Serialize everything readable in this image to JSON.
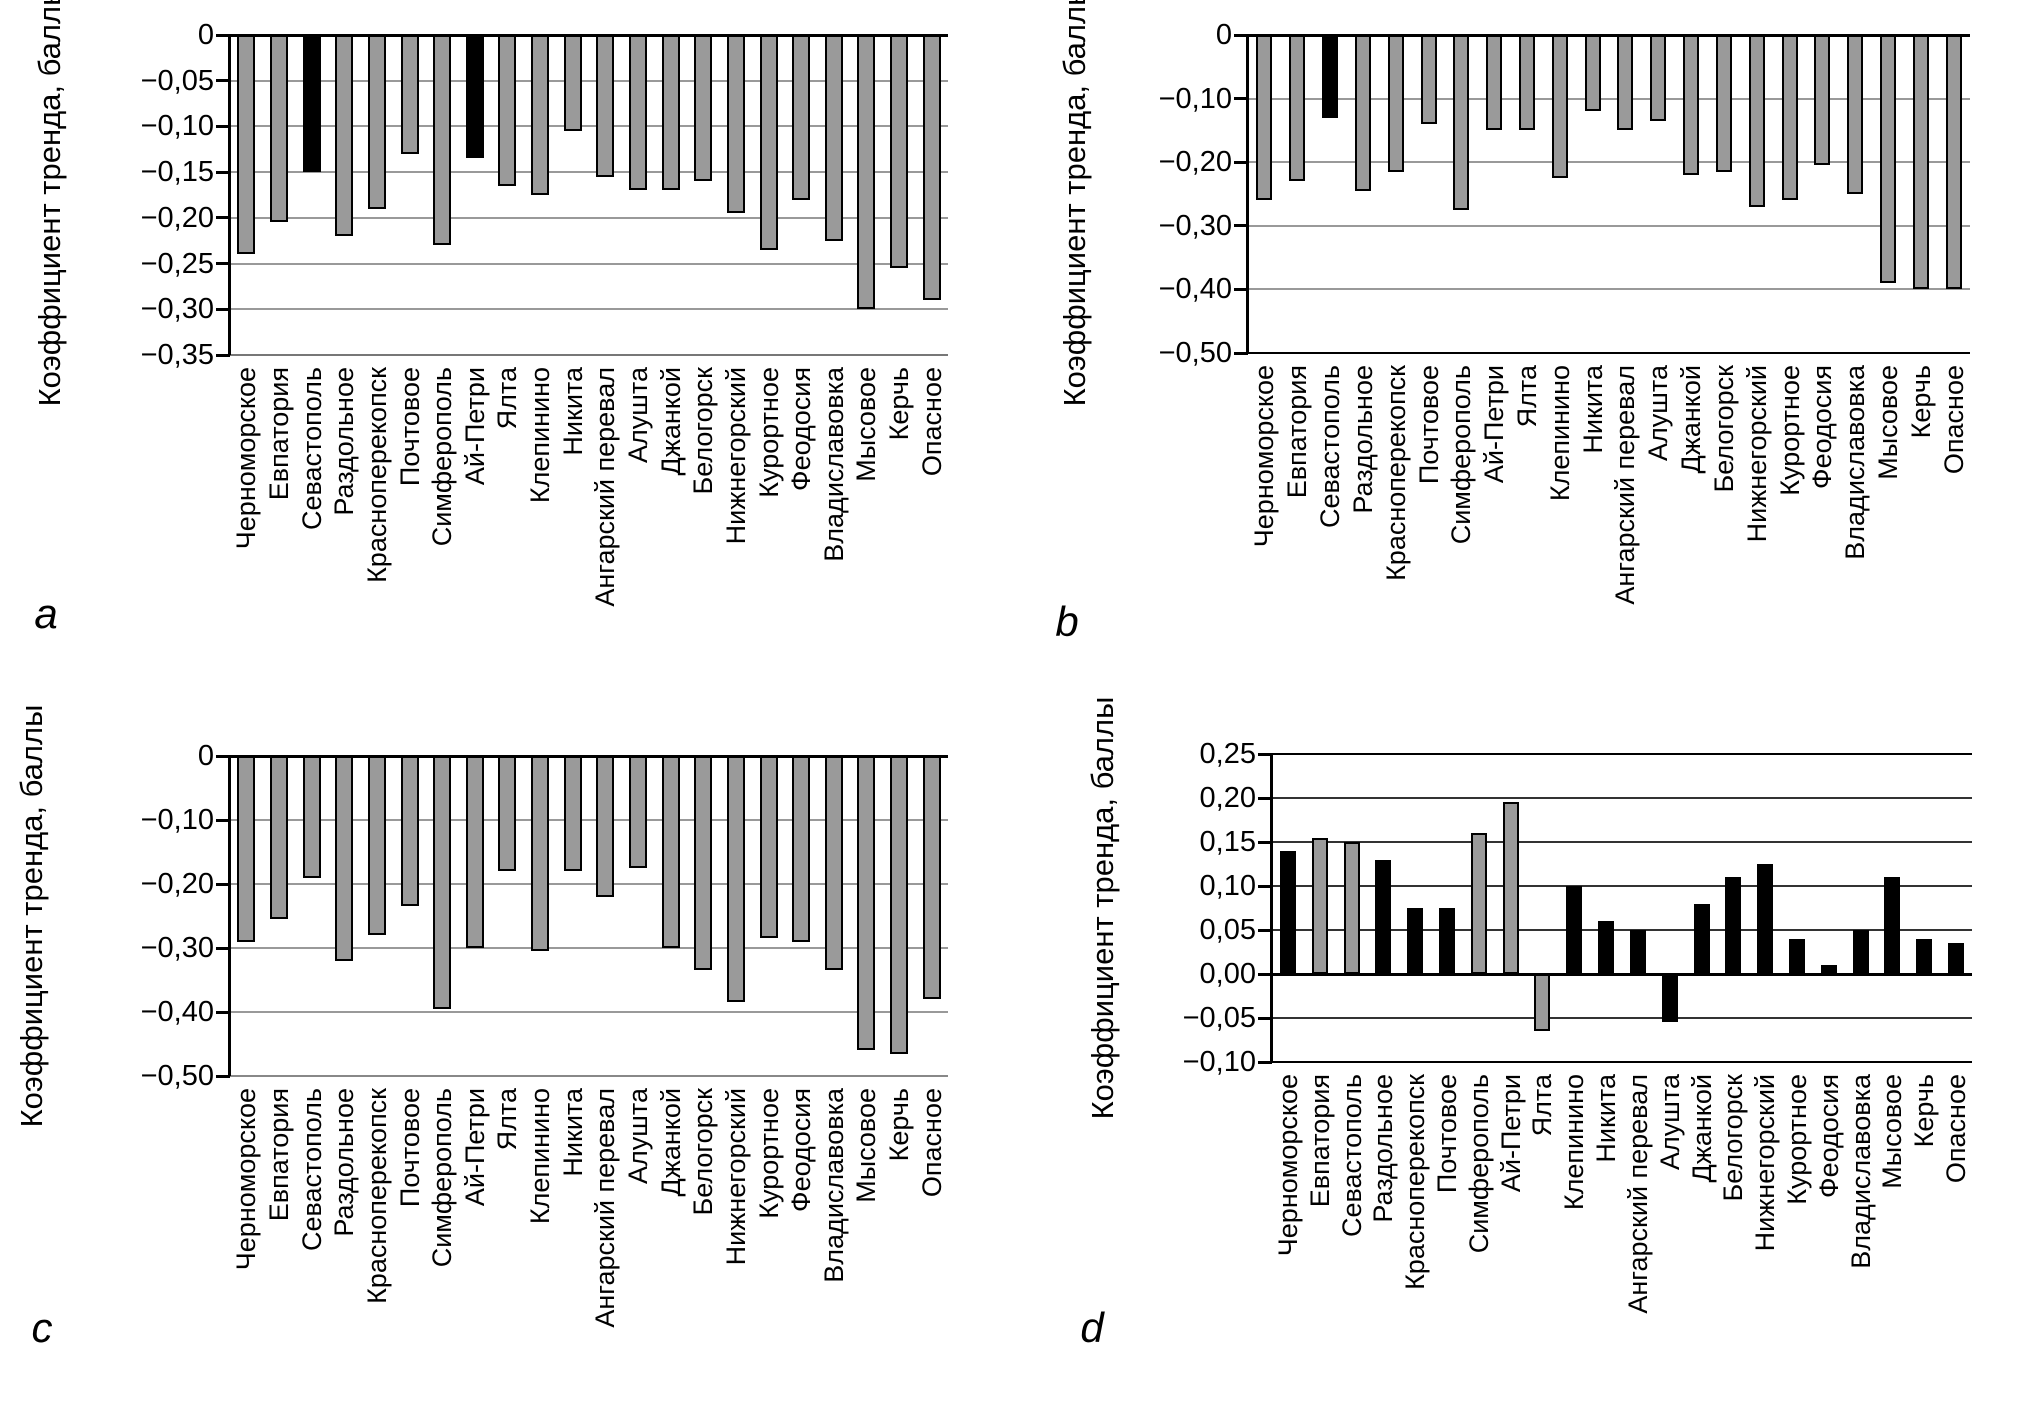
{
  "figure": {
    "y_axis_title": "Коэффициент тренда, баллы"
  },
  "panels": [
    {
      "letter": "a",
      "ylabel": "Коэффициент тренда, баллы",
      "yticks": [
        "0",
        "−0,05",
        "−0,10",
        "−0,15",
        "−0,20",
        "−0,25",
        "−0,30",
        "−0,35"
      ]
    },
    {
      "letter": "b",
      "ylabel": "Коэффициент тренда, баллы",
      "yticks": [
        "0",
        "−0,10",
        "−0,20",
        "−0,30",
        "−0,40",
        "−0,50"
      ]
    },
    {
      "letter": "c",
      "ylabel": "Коэффициент тренда, баллы",
      "yticks": [
        "0",
        "−0,10",
        "−0,20",
        "−0,30",
        "−0,40",
        "−0,50"
      ]
    },
    {
      "letter": "d",
      "ylabel": "Коэффициент тренда, баллы",
      "yticks": [
        "0,25",
        "0,20",
        "0,15",
        "0,10",
        "0,05",
        "0,00",
        "−0,05",
        "−0,10"
      ]
    }
  ],
  "chart_data": [
    {
      "type": "bar",
      "panel": "a",
      "title": "",
      "xlabel": "",
      "ylabel": "Коэффициент тренда, баллы",
      "ylim": [
        -0.35,
        0
      ],
      "yticks": [
        0,
        -0.05,
        -0.1,
        -0.15,
        -0.2,
        -0.25,
        -0.3,
        -0.35
      ],
      "grid": true,
      "legend_position": "none",
      "categories": [
        "Черноморское",
        "Евпатория",
        "Севастополь",
        "Раздольное",
        "Красноперекопск",
        "Почтовое",
        "Симферополь",
        "Ай-Петри",
        "Ялта",
        "Клепинино",
        "Никита",
        "Ангарский перевал",
        "Алушта",
        "Джанкой",
        "Белогорск",
        "Нижнегорский",
        "Курортное",
        "Феодосия",
        "Владиславовка",
        "Мысовое",
        "Керчь",
        "Опасное"
      ],
      "values": [
        -0.24,
        -0.205,
        -0.15,
        -0.22,
        -0.19,
        -0.13,
        -0.23,
        -0.135,
        -0.165,
        -0.175,
        -0.105,
        -0.155,
        -0.17,
        -0.17,
        -0.16,
        -0.195,
        -0.235,
        -0.18,
        -0.225,
        -0.3,
        -0.255,
        -0.29
      ],
      "bar_colors": [
        "gray",
        "gray",
        "black",
        "gray",
        "gray",
        "gray",
        "gray",
        "black",
        "gray",
        "gray",
        "gray",
        "gray",
        "gray",
        "gray",
        "gray",
        "gray",
        "gray",
        "gray",
        "gray",
        "gray",
        "gray",
        "gray"
      ]
    },
    {
      "type": "bar",
      "panel": "b",
      "title": "",
      "xlabel": "",
      "ylabel": "Коэффициент тренда, баллы",
      "ylim": [
        -0.5,
        0
      ],
      "yticks": [
        0,
        -0.1,
        -0.2,
        -0.3,
        -0.4,
        -0.5
      ],
      "grid": true,
      "legend_position": "none",
      "categories": [
        "Черноморское",
        "Евпатория",
        "Севастополь",
        "Раздольное",
        "Красноперекопск",
        "Почтовое",
        "Симферополь",
        "Ай-Петри",
        "Ялта",
        "Клепинино",
        "Никита",
        "Ангарский перевал",
        "Алушта",
        "Джанкой",
        "Белогорск",
        "Нижнегорский",
        "Курортное",
        "Феодосия",
        "Владиславовка",
        "Мысовое",
        "Керчь",
        "Опасное"
      ],
      "values": [
        -0.26,
        -0.23,
        -0.13,
        -0.245,
        -0.215,
        -0.14,
        -0.275,
        -0.15,
        -0.15,
        -0.225,
        -0.12,
        -0.15,
        -0.135,
        -0.22,
        -0.215,
        -0.27,
        -0.26,
        -0.205,
        -0.25,
        -0.39,
        -0.4,
        -0.4
      ],
      "bar_colors": [
        "gray",
        "gray",
        "black",
        "gray",
        "gray",
        "gray",
        "gray",
        "gray",
        "gray",
        "gray",
        "gray",
        "gray",
        "gray",
        "gray",
        "gray",
        "gray",
        "gray",
        "gray",
        "gray",
        "gray",
        "gray",
        "gray"
      ]
    },
    {
      "type": "bar",
      "panel": "c",
      "title": "",
      "xlabel": "",
      "ylabel": "Коэффициент тренда, баллы",
      "ylim": [
        -0.5,
        0
      ],
      "yticks": [
        0,
        -0.1,
        -0.2,
        -0.3,
        -0.4,
        -0.5
      ],
      "grid": true,
      "legend_position": "none",
      "categories": [
        "Черноморское",
        "Евпатория",
        "Севастополь",
        "Раздольное",
        "Красноперекопск",
        "Почтовое",
        "Симферополь",
        "Ай-Петри",
        "Ялта",
        "Клепинино",
        "Никита",
        "Ангарский перевал",
        "Алушта",
        "Джанкой",
        "Белогорск",
        "Нижнегорский",
        "Курортное",
        "Феодосия",
        "Владиславовка",
        "Мысовое",
        "Керчь",
        "Опасное"
      ],
      "values": [
        -0.29,
        -0.255,
        -0.19,
        -0.32,
        -0.28,
        -0.235,
        -0.395,
        -0.3,
        -0.18,
        -0.305,
        -0.18,
        -0.22,
        -0.175,
        -0.3,
        -0.335,
        -0.385,
        -0.285,
        -0.29,
        -0.335,
        -0.46,
        -0.465,
        -0.38
      ],
      "bar_colors": [
        "gray",
        "gray",
        "gray",
        "gray",
        "gray",
        "gray",
        "gray",
        "gray",
        "gray",
        "gray",
        "gray",
        "gray",
        "gray",
        "gray",
        "gray",
        "gray",
        "gray",
        "gray",
        "gray",
        "gray",
        "gray",
        "gray"
      ]
    },
    {
      "type": "bar",
      "panel": "d",
      "title": "",
      "xlabel": "",
      "ylabel": "Коэффициент тренда, баллы",
      "ylim": [
        -0.1,
        0.25
      ],
      "yticks": [
        0.25,
        0.2,
        0.15,
        0.1,
        0.05,
        0.0,
        -0.05,
        -0.1
      ],
      "grid": true,
      "legend_position": "none",
      "categories": [
        "Черноморское",
        "Евпатория",
        "Севастополь",
        "Раздольное",
        "Красноперекопск",
        "Почтовое",
        "Симферополь",
        "Ай-Петри",
        "Ялта",
        "Клепинино",
        "Никита",
        "Ангарский перевал",
        "Алушта",
        "Джанкой",
        "Белогорск",
        "Нижнегорский",
        "Курортное",
        "Феодосия",
        "Владиславовка",
        "Мысовое",
        "Керчь",
        "Опасное"
      ],
      "values": [
        0.14,
        0.155,
        0.15,
        0.13,
        0.075,
        0.075,
        0.16,
        0.195,
        -0.065,
        0.1,
        0.06,
        0.05,
        -0.055,
        0.08,
        0.11,
        0.125,
        0.04,
        0.01,
        0.05,
        0.11,
        0.04,
        0.035
      ],
      "bar_colors": [
        "black",
        "gray",
        "gray",
        "black",
        "black",
        "black",
        "gray",
        "gray",
        "gray",
        "black",
        "black",
        "black",
        "black",
        "black",
        "black",
        "black",
        "black",
        "black",
        "black",
        "black",
        "black",
        "black"
      ]
    }
  ],
  "colors": {
    "bar_gray": "#9a9a9a",
    "bar_black": "#000000",
    "gridline": "#999999",
    "axis": "#000000"
  }
}
